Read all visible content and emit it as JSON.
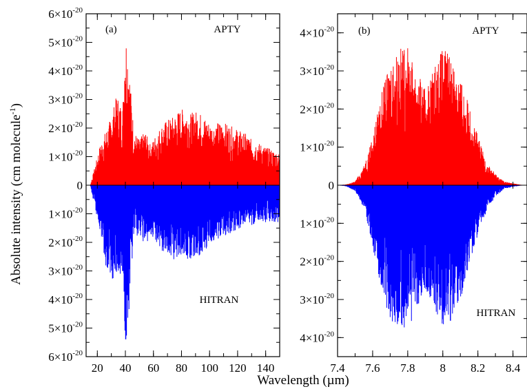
{
  "figure": {
    "ylabel_main": "Absolute intensity (cm molecule",
    "ylabel_sup": "-1",
    "ylabel_end": ")",
    "xlabel": "Wavelength (µm)"
  },
  "chart_data": [
    {
      "type": "line",
      "panel_label": "(a)",
      "xlim": [
        12,
        150
      ],
      "ylim": [
        -6e-20,
        6e-20
      ],
      "xticks": [
        20,
        40,
        60,
        80,
        100,
        120,
        140
      ],
      "yticks": [
        {
          "value": 6e-20,
          "mantissa": "6",
          "exp": "-20"
        },
        {
          "value": 5e-20,
          "mantissa": "5",
          "exp": "-20"
        },
        {
          "value": 4e-20,
          "mantissa": "4",
          "exp": "-20"
        },
        {
          "value": 3e-20,
          "mantissa": "3",
          "exp": "-20"
        },
        {
          "value": 2e-20,
          "mantissa": "2",
          "exp": "-20"
        },
        {
          "value": 1e-20,
          "mantissa": "1",
          "exp": "-20"
        },
        {
          "value": 0,
          "mantissa": "0",
          "exp": ""
        },
        {
          "value": -1e-20,
          "mantissa": "1",
          "exp": "-20"
        },
        {
          "value": -2e-20,
          "mantissa": "2",
          "exp": "-20"
        },
        {
          "value": -3e-20,
          "mantissa": "3",
          "exp": "-20"
        },
        {
          "value": -4e-20,
          "mantissa": "4",
          "exp": "-20"
        },
        {
          "value": -5e-20,
          "mantissa": "5",
          "exp": "-20"
        },
        {
          "value": -6e-20,
          "mantissa": "6",
          "exp": "-20"
        }
      ],
      "series": [
        {
          "name": "APTY",
          "color": "#ff0000",
          "sign": 1,
          "envelope": {
            "x": [
              15,
              18,
              22,
              26,
              30,
              34,
              38,
              40,
              42,
              46,
              50,
              54,
              58,
              62,
              66,
              70,
              74,
              78,
              82,
              86,
              90,
              94,
              98,
              102,
              106,
              110,
              114,
              118,
              122,
              126,
              130,
              134,
              138,
              142,
              146,
              150
            ],
            "y": [
              0,
              6e-21,
              1.4e-20,
              1.9e-20,
              2.4e-20,
              3.2e-20,
              2.6e-20,
              5.5e-20,
              4.6e-20,
              1.9e-20,
              1.6e-20,
              1.9e-20,
              1.4e-20,
              1.8e-20,
              2.1e-20,
              2.3e-20,
              2.4e-20,
              2.6e-20,
              2.7e-20,
              2.5e-20,
              2.6e-20,
              2.5e-20,
              2.3e-20,
              2.1e-20,
              2.2e-20,
              2.2e-20,
              2.1e-20,
              2e-20,
              1.9e-20,
              1.8e-20,
              1.6e-20,
              1.5e-20,
              1.4e-20,
              1.3e-20,
              1.2e-20,
              1.1e-20
            ]
          }
        },
        {
          "name": "HITRAN",
          "color": "#0000ff",
          "sign": -1,
          "envelope": {
            "x": [
              15,
              18,
              22,
              26,
              30,
              34,
              38,
              40,
              42,
              46,
              50,
              54,
              58,
              62,
              66,
              70,
              74,
              78,
              82,
              86,
              90,
              94,
              98,
              102,
              106,
              110,
              114,
              118,
              122,
              126,
              130,
              134,
              138,
              142,
              146,
              150
            ],
            "y": [
              0,
              8e-21,
              1.6e-20,
              2.8e-20,
              3.3e-20,
              3.2e-20,
              3.3e-20,
              5.5e-20,
              5e-20,
              1.9e-20,
              1.7e-20,
              2.1e-20,
              1.8e-20,
              2e-20,
              2.3e-20,
              2.4e-20,
              2.6e-20,
              2.6e-20,
              2.7e-20,
              2.6e-20,
              2.6e-20,
              2.5e-20,
              2.2e-20,
              2e-20,
              1.9e-20,
              1.8e-20,
              1.7e-20,
              1.6e-20,
              1.5e-20,
              1.4e-20,
              1.4e-20,
              1.3e-20,
              1.3e-20,
              1.3e-20,
              1.3e-20,
              1.3e-20
            ]
          }
        }
      ]
    },
    {
      "type": "line",
      "panel_label": "(b)",
      "xlim": [
        7.4,
        8.48
      ],
      "ylim": [
        -4.5e-20,
        4.5e-20
      ],
      "xticks": [
        7.4,
        7.6,
        7.8,
        8,
        8.2,
        8.4
      ],
      "yticks": [
        {
          "value": 4e-20,
          "mantissa": "4",
          "exp": "-20"
        },
        {
          "value": 3e-20,
          "mantissa": "3",
          "exp": "-20"
        },
        {
          "value": 2e-20,
          "mantissa": "2",
          "exp": "-20"
        },
        {
          "value": 1e-20,
          "mantissa": "1",
          "exp": "-20"
        },
        {
          "value": 0,
          "mantissa": "0",
          "exp": ""
        },
        {
          "value": -1e-20,
          "mantissa": "1",
          "exp": "-20"
        },
        {
          "value": -2e-20,
          "mantissa": "2",
          "exp": "-20"
        },
        {
          "value": -3e-20,
          "mantissa": "3",
          "exp": "-20"
        },
        {
          "value": -4e-20,
          "mantissa": "4",
          "exp": "-20"
        }
      ],
      "series": [
        {
          "name": "APTY",
          "color": "#ff0000",
          "sign": 1,
          "envelope": {
            "x": [
              7.4,
              7.45,
              7.5,
              7.55,
              7.6,
              7.65,
              7.7,
              7.75,
              7.8,
              7.85,
              7.9,
              7.95,
              8.0,
              8.05,
              8.1,
              8.15,
              8.2,
              8.25,
              8.3,
              8.35,
              8.4,
              8.45,
              8.48
            ],
            "y": [
              0,
              2e-22,
              1e-21,
              5e-21,
              1.3e-20,
              2.4e-20,
              3.2e-20,
              3.6e-20,
              3.6e-20,
              3e-20,
              2.5e-20,
              3.1e-20,
              3.6e-20,
              3.4e-20,
              2.8e-20,
              2.1e-20,
              1.3e-20,
              6e-21,
              3e-21,
              1e-21,
              5e-22,
              1e-22,
              0
            ]
          }
        },
        {
          "name": "HITRAN",
          "color": "#0000ff",
          "sign": -1,
          "envelope": {
            "x": [
              7.4,
              7.45,
              7.5,
              7.55,
              7.6,
              7.65,
              7.7,
              7.75,
              7.8,
              7.85,
              7.9,
              7.95,
              8.0,
              8.05,
              8.1,
              8.15,
              8.2,
              8.25,
              8.3,
              8.35,
              8.4,
              8.45,
              8.48
            ],
            "y": [
              0,
              3e-22,
              1.5e-21,
              6e-21,
              1.6e-20,
              2.8e-20,
              3.6e-20,
              3.8e-20,
              3.8e-20,
              3.3e-20,
              2.7e-20,
              3.3e-20,
              3.7e-20,
              3.6e-20,
              3e-20,
              2.2e-20,
              1.3e-20,
              7e-21,
              3e-21,
              1e-21,
              4e-22,
              1e-22,
              0
            ]
          }
        }
      ]
    }
  ]
}
